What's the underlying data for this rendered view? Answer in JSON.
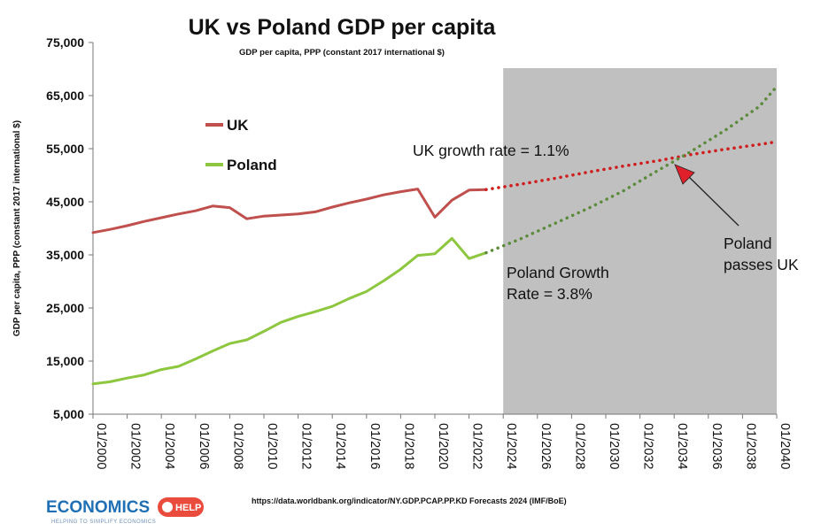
{
  "chart_data": {
    "type": "line",
    "title": "UK vs Poland GDP per capita",
    "subtitle": "GDP per capita, PPP (constant 2017 international $)",
    "ylabel": "GDP per capita, PPP (constant 2017 international $)",
    "ylim": [
      5000,
      75000
    ],
    "yticks": [
      "5,000",
      "15,000",
      "25,000",
      "35,000",
      "45,000",
      "55,000",
      "65,000",
      "75,000"
    ],
    "ytick_values": [
      5000,
      15000,
      25000,
      35000,
      45000,
      55000,
      65000,
      75000
    ],
    "xlim": [
      2000,
      2040
    ],
    "xticks": [
      "01/2000",
      "01/2002",
      "01/2004",
      "01/2006",
      "01/2008",
      "01/2010",
      "01/2012",
      "01/2014",
      "01/2016",
      "01/2018",
      "01/2020",
      "01/2022",
      "01/2024",
      "01/2026",
      "01/2028",
      "01/2030",
      "01/2032",
      "01/2034",
      "01/2036",
      "01/2038",
      "01/2040"
    ],
    "xtick_values": [
      2000,
      2002,
      2004,
      2006,
      2008,
      2010,
      2012,
      2014,
      2016,
      2018,
      2020,
      2022,
      2024,
      2026,
      2028,
      2030,
      2032,
      2034,
      2036,
      2038,
      2040
    ],
    "forecast_shade": [
      2024,
      2040
    ],
    "legend_position": "top-left",
    "grid": false,
    "series": [
      {
        "name": "UK",
        "color": "#c0504d",
        "x": [
          2000,
          2001,
          2002,
          2003,
          2004,
          2005,
          2006,
          2007,
          2008,
          2009,
          2010,
          2011,
          2012,
          2013,
          2014,
          2015,
          2016,
          2017,
          2018,
          2019,
          2020,
          2021,
          2022,
          2023
        ],
        "values": [
          39200,
          39800,
          40500,
          41300,
          42000,
          42700,
          43300,
          44200,
          43900,
          41800,
          42300,
          42500,
          42700,
          43100,
          44000,
          44800,
          45500,
          46300,
          46900,
          47400,
          42100,
          45300,
          47200,
          47300
        ]
      },
      {
        "name": "Poland",
        "color": "#8dc63f",
        "x": [
          2000,
          2001,
          2002,
          2003,
          2004,
          2005,
          2006,
          2007,
          2008,
          2009,
          2010,
          2011,
          2012,
          2013,
          2014,
          2015,
          2016,
          2017,
          2018,
          2019,
          2020,
          2021,
          2022,
          2023
        ],
        "values": [
          10700,
          11100,
          11800,
          12400,
          13400,
          14000,
          15400,
          16900,
          18300,
          19000,
          20600,
          22300,
          23400,
          24300,
          25300,
          26800,
          28100,
          30100,
          32300,
          34900,
          35200,
          38100,
          34300,
          35400
        ]
      },
      {
        "name": "UK forecast",
        "color": "#d01c1c",
        "style": "dotted",
        "x": [
          2023,
          2025,
          2027,
          2029,
          2031,
          2033,
          2035,
          2037,
          2039,
          2040
        ],
        "values": [
          47300,
          48300,
          49400,
          50600,
          51700,
          52700,
          53900,
          54900,
          55800,
          56300
        ]
      },
      {
        "name": "Poland forecast",
        "color": "#5a8a3a",
        "style": "dotted",
        "x": [
          2023,
          2025,
          2027,
          2029,
          2031,
          2033,
          2035,
          2037,
          2039,
          2040
        ],
        "values": [
          35400,
          38000,
          40900,
          43800,
          47000,
          50800,
          54500,
          58500,
          63000,
          66700
        ]
      }
    ],
    "legend": [
      {
        "label": "UK",
        "color": "#c0504d"
      },
      {
        "label": "Poland",
        "color": "#8dc63f"
      }
    ],
    "annotations": {
      "uk_growth": "UK growth rate = 1.1%",
      "poland_growth_line1": "Poland Growth",
      "poland_growth_line2": "Rate = 3.8%",
      "passes_line1": "Poland",
      "passes_line2": "passes UK"
    },
    "source": "https://data.worldbank.org/indicator/NY.GDP.PCAP.PP.KD Forecasts 2024 (IMF/BoE)"
  },
  "logo": {
    "name": "ECONOMICS",
    "badge": "HELP",
    "tagline": "HELPING TO SIMPLIFY ECONOMICS"
  },
  "colors": {
    "uk": "#c0504d",
    "poland": "#8dc63f",
    "forecast_shade": "#c0c0c0",
    "arrow": "#e0202a"
  }
}
